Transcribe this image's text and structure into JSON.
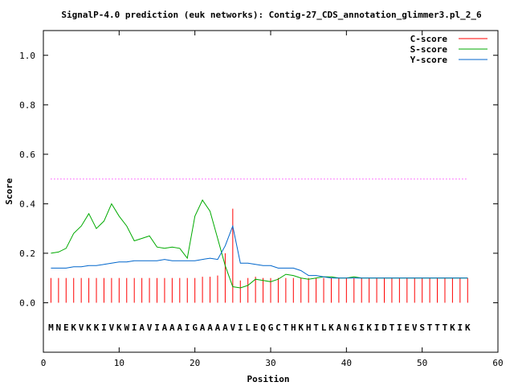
{
  "chart_data": {
    "type": "line",
    "title": "SignalP-4.0 prediction (euk networks): Contig-27_CDS_annotation_glimmer3.pl_2_6",
    "xlabel": "Position",
    "ylabel": "Score",
    "xlim": [
      0,
      60
    ],
    "ylim": [
      -0.2,
      1.1
    ],
    "xticks": [
      0,
      10,
      20,
      30,
      40,
      50,
      60
    ],
    "yticks": [
      0.0,
      0.2,
      0.4,
      0.6,
      0.8,
      1.0
    ],
    "xtick_labels": [
      "0",
      "10",
      "20",
      "30",
      "40",
      "50",
      "60"
    ],
    "ytick_labels": [
      "0.0",
      "0.2",
      "0.4",
      "0.6",
      "0.8",
      "1.0"
    ],
    "grid": false,
    "legend_position": "top-right",
    "threshold": {
      "value": 0.5,
      "x_range": [
        1,
        56
      ],
      "color": "#ff00ff"
    },
    "sequence": [
      "M",
      "N",
      "E",
      "K",
      "V",
      "K",
      "K",
      "I",
      "V",
      "K",
      "W",
      "I",
      "A",
      "V",
      "I",
      "A",
      "A",
      "A",
      "I",
      "G",
      "A",
      "A",
      "A",
      "A",
      "V",
      "I",
      "L",
      "E",
      "Q",
      "G",
      "C",
      "T",
      "H",
      "K",
      "H",
      "T",
      "L",
      "K",
      "A",
      "N",
      "G",
      "I",
      "K",
      "I",
      "D",
      "T",
      "I",
      "E",
      "V",
      "S",
      "T",
      "T",
      "T",
      "K",
      "I",
      "K"
    ],
    "sequence_y": -0.1,
    "series": [
      {
        "name": "C-score",
        "color": "#ff0000",
        "style": "impulse",
        "x": [
          1,
          2,
          3,
          4,
          5,
          6,
          7,
          8,
          9,
          10,
          11,
          12,
          13,
          14,
          15,
          16,
          17,
          18,
          19,
          20,
          21,
          22,
          23,
          24,
          25,
          26,
          27,
          28,
          29,
          30,
          31,
          32,
          33,
          34,
          35,
          36,
          37,
          38,
          39,
          40,
          41,
          42,
          43,
          44,
          45,
          46,
          47,
          48,
          49,
          50,
          51,
          52,
          53,
          54,
          55,
          56
        ],
        "values": [
          0.1,
          0.1,
          0.1,
          0.1,
          0.1,
          0.1,
          0.1,
          0.1,
          0.1,
          0.1,
          0.1,
          0.1,
          0.1,
          0.1,
          0.1,
          0.1,
          0.1,
          0.1,
          0.1,
          0.1,
          0.105,
          0.105,
          0.11,
          0.2,
          0.38,
          0.09,
          0.1,
          0.105,
          0.1,
          0.1,
          0.1,
          0.1,
          0.1,
          0.1,
          0.1,
          0.1,
          0.1,
          0.1,
          0.1,
          0.1,
          0.1,
          0.1,
          0.1,
          0.1,
          0.1,
          0.1,
          0.1,
          0.1,
          0.1,
          0.1,
          0.1,
          0.1,
          0.1,
          0.1,
          0.1,
          0.1
        ]
      },
      {
        "name": "S-score",
        "color": "#00aa00",
        "style": "line",
        "x": [
          1,
          2,
          3,
          4,
          5,
          6,
          7,
          8,
          9,
          10,
          11,
          12,
          13,
          14,
          15,
          16,
          17,
          18,
          19,
          20,
          21,
          22,
          23,
          24,
          25,
          26,
          27,
          28,
          29,
          30,
          31,
          32,
          33,
          34,
          35,
          36,
          37,
          38,
          39,
          40,
          41,
          42,
          43,
          44,
          45,
          46,
          47,
          48,
          49,
          50,
          51,
          52,
          53,
          54,
          55,
          56
        ],
        "values": [
          0.2,
          0.205,
          0.22,
          0.28,
          0.31,
          0.36,
          0.3,
          0.33,
          0.4,
          0.35,
          0.31,
          0.25,
          0.26,
          0.27,
          0.225,
          0.22,
          0.225,
          0.22,
          0.18,
          0.35,
          0.415,
          0.37,
          0.26,
          0.15,
          0.065,
          0.06,
          0.07,
          0.095,
          0.09,
          0.085,
          0.095,
          0.115,
          0.11,
          0.1,
          0.095,
          0.1,
          0.105,
          0.105,
          0.1,
          0.1,
          0.105,
          0.1,
          0.1,
          0.1,
          0.1,
          0.1,
          0.1,
          0.1,
          0.1,
          0.1,
          0.1,
          0.1,
          0.1,
          0.1,
          0.1,
          0.1
        ]
      },
      {
        "name": "Y-score",
        "color": "#0066cc",
        "style": "line",
        "x": [
          1,
          2,
          3,
          4,
          5,
          6,
          7,
          8,
          9,
          10,
          11,
          12,
          13,
          14,
          15,
          16,
          17,
          18,
          19,
          20,
          21,
          22,
          23,
          24,
          25,
          26,
          27,
          28,
          29,
          30,
          31,
          32,
          33,
          34,
          35,
          36,
          37,
          38,
          39,
          40,
          41,
          42,
          43,
          44,
          45,
          46,
          47,
          48,
          49,
          50,
          51,
          52,
          53,
          54,
          55,
          56
        ],
        "values": [
          0.14,
          0.14,
          0.14,
          0.145,
          0.145,
          0.15,
          0.15,
          0.155,
          0.16,
          0.165,
          0.165,
          0.17,
          0.17,
          0.17,
          0.17,
          0.175,
          0.17,
          0.17,
          0.17,
          0.17,
          0.175,
          0.18,
          0.175,
          0.23,
          0.31,
          0.16,
          0.16,
          0.155,
          0.15,
          0.15,
          0.14,
          0.14,
          0.14,
          0.13,
          0.11,
          0.11,
          0.105,
          0.1,
          0.1,
          0.1,
          0.1,
          0.1,
          0.1,
          0.1,
          0.1,
          0.1,
          0.1,
          0.1,
          0.1,
          0.1,
          0.1,
          0.1,
          0.1,
          0.1,
          0.1,
          0.1
        ]
      }
    ]
  }
}
